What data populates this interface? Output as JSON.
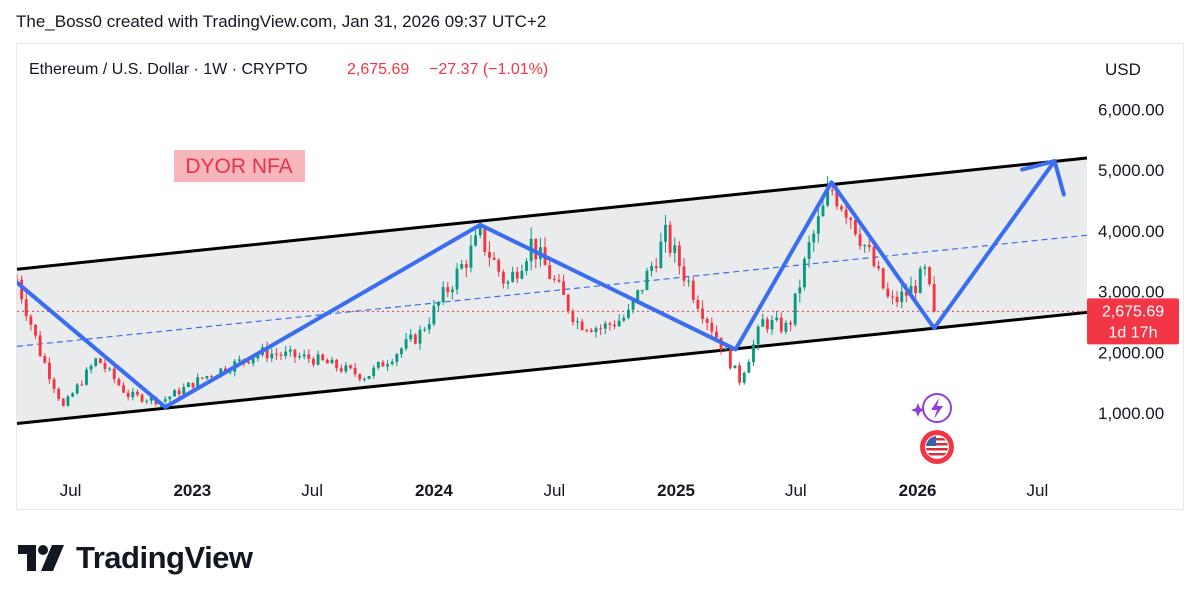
{
  "header": {
    "credit": "The_Boss0 created with TradingView.com, Jan 31, 2026 09:37 UTC+2"
  },
  "brand": {
    "name": "TradingView",
    "logo_icon": "tradingview-logo-icon"
  },
  "colors": {
    "price_down": "#f23645",
    "price_up": "#089981",
    "pattern_line": "#3a6df0",
    "channel_fill": "#e3e4e6",
    "label_bg": "#f7b6bc",
    "label_text": "#e8314a"
  },
  "chart_data": {
    "type": "candlestick",
    "symbol_line": {
      "name": "Ethereum / U.S. Dollar · 1W · CRYPTO",
      "price": "2,675.69",
      "change": "−27.37 (−1.01%)"
    },
    "currency": "USD",
    "ylim": [
      0,
      6500
    ],
    "y_ticks": [
      {
        "value": 1000,
        "label": "1,000.00"
      },
      {
        "value": 2000,
        "label": "2,000.00"
      },
      {
        "value": 3000,
        "label": "3,000.00"
      },
      {
        "value": 4000,
        "label": "4,000.00"
      },
      {
        "value": 5000,
        "label": "5,000.00"
      },
      {
        "value": 6000,
        "label": "6,000.00"
      }
    ],
    "x_range": [
      "2022-04-11",
      "2026-09-14"
    ],
    "x_ticks": [
      {
        "date": "2022-07-01",
        "label": "Jul",
        "bold": false
      },
      {
        "date": "2023-01-01",
        "label": "2023",
        "bold": true
      },
      {
        "date": "2023-07-01",
        "label": "Jul",
        "bold": false
      },
      {
        "date": "2024-01-01",
        "label": "2024",
        "bold": true
      },
      {
        "date": "2024-07-01",
        "label": "Jul",
        "bold": false
      },
      {
        "date": "2025-01-01",
        "label": "2025",
        "bold": true
      },
      {
        "date": "2025-07-01",
        "label": "Jul",
        "bold": false
      },
      {
        "date": "2026-01-01",
        "label": "2026",
        "bold": true
      },
      {
        "date": "2026-07-01",
        "label": "Jul",
        "bold": false
      }
    ],
    "last_price": {
      "value": 2675.69,
      "label": "2,675.69",
      "countdown": "1d 17h"
    },
    "anchors": [
      {
        "date": "2022-04-11",
        "close": 3200
      },
      {
        "date": "2022-05-16",
        "close": 2000
      },
      {
        "date": "2022-06-20",
        "close": 1100
      },
      {
        "date": "2022-08-10",
        "close": 1900
      },
      {
        "date": "2022-09-25",
        "close": 1300
      },
      {
        "date": "2022-11-15",
        "close": 1200
      },
      {
        "date": "2023-01-20",
        "close": 1600
      },
      {
        "date": "2023-04-15",
        "close": 2000
      },
      {
        "date": "2023-07-01",
        "close": 1900
      },
      {
        "date": "2023-09-20",
        "close": 1600
      },
      {
        "date": "2023-12-10",
        "close": 2300
      },
      {
        "date": "2024-03-11",
        "close": 3900
      },
      {
        "date": "2024-04-20",
        "close": 3100
      },
      {
        "date": "2024-05-27",
        "close": 3800
      },
      {
        "date": "2024-08-05",
        "close": 2500
      },
      {
        "date": "2024-09-10",
        "close": 2400
      },
      {
        "date": "2024-10-20",
        "close": 2600
      },
      {
        "date": "2024-12-16",
        "close": 3900
      },
      {
        "date": "2025-02-10",
        "close": 2700
      },
      {
        "date": "2025-04-07",
        "close": 1550
      },
      {
        "date": "2025-05-12",
        "close": 2500
      },
      {
        "date": "2025-06-20",
        "close": 2400
      },
      {
        "date": "2025-07-20",
        "close": 3700
      },
      {
        "date": "2025-08-24",
        "close": 4700
      },
      {
        "date": "2025-09-20",
        "close": 4300
      },
      {
        "date": "2025-10-20",
        "close": 3600
      },
      {
        "date": "2025-11-20",
        "close": 2800
      },
      {
        "date": "2025-12-20",
        "close": 3000
      },
      {
        "date": "2026-01-12",
        "close": 3300
      },
      {
        "date": "2026-01-26",
        "close": 2676
      }
    ],
    "channel": {
      "upper": [
        {
          "date": "2022-04-11",
          "value": 3370
        },
        {
          "date": "2026-09-14",
          "value": 5200
        }
      ],
      "lower": [
        {
          "date": "2022-04-11",
          "value": 830
        },
        {
          "date": "2026-09-14",
          "value": 2660
        }
      ],
      "middle": [
        {
          "date": "2022-04-11",
          "value": 2100
        },
        {
          "date": "2026-09-14",
          "value": 3930
        }
      ]
    },
    "current_price_line": 2675.69,
    "pattern_path": [
      {
        "date": "2022-04-11",
        "value": 3150
      },
      {
        "date": "2022-11-21",
        "value": 1100
      },
      {
        "date": "2024-03-11",
        "value": 4100
      },
      {
        "date": "2025-04-01",
        "value": 2050
      },
      {
        "date": "2025-08-24",
        "value": 4800
      },
      {
        "date": "2026-01-26",
        "value": 2400
      },
      {
        "date": "2026-07-27",
        "value": 5150
      }
    ],
    "arrow_head": {
      "tip": {
        "date": "2026-07-27",
        "value": 5150
      },
      "left": {
        "date": "2026-06-08",
        "value": 5010
      },
      "bottom": {
        "date": "2026-08-10",
        "value": 4600
      }
    },
    "annotation": {
      "text": "DYOR NFA"
    },
    "event_icons": [
      "lightning-icon",
      "us-flag-icon"
    ]
  }
}
